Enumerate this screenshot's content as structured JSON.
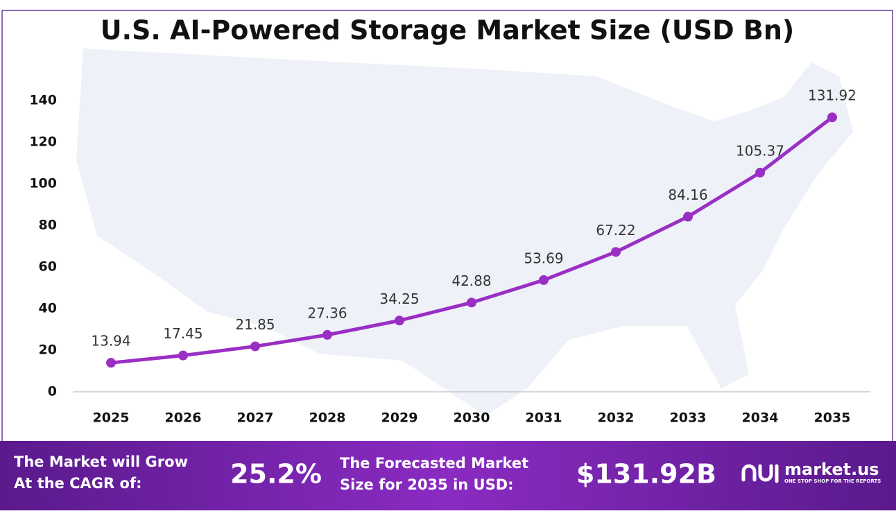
{
  "chart_data": {
    "type": "line",
    "title": "U.S. AI-Powered Storage Market Size (USD Bn)",
    "categories": [
      "2025",
      "2026",
      "2027",
      "2028",
      "2029",
      "2030",
      "2031",
      "2032",
      "2033",
      "2034",
      "2035"
    ],
    "values": [
      13.94,
      17.45,
      21.85,
      27.36,
      34.25,
      42.88,
      53.69,
      67.22,
      84.16,
      105.37,
      131.92
    ],
    "color": "#9a2fc4",
    "ylim": [
      0,
      140
    ],
    "yticks": [
      0,
      20,
      40,
      60,
      80,
      100,
      120,
      140
    ],
    "grid": false
  },
  "footer": {
    "cagr_label": [
      "The Market will Grow",
      "At the CAGR of:"
    ],
    "cagr_value": "25.2%",
    "forecast_label": [
      "The Forecasted Market",
      "Size for 2035 in USD:"
    ],
    "forecast_value": "$131.92B",
    "brand": "market.us",
    "tagline": "ONE STOP SHOP FOR THE REPORTS"
  }
}
